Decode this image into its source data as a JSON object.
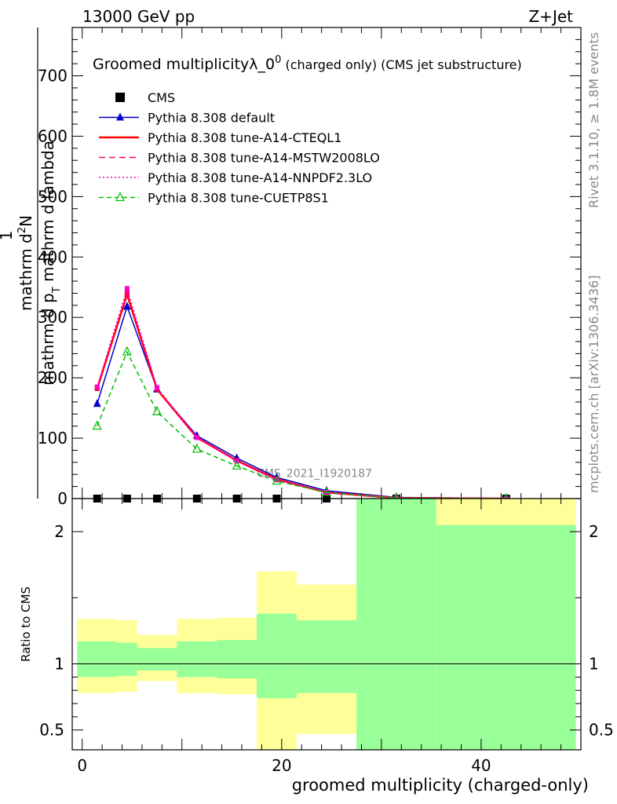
{
  "header": {
    "left": "13000 GeV pp",
    "right": "Z+Jet"
  },
  "side_labels": {
    "rivet": "Rivet 3.1.10, ≥ 1.8M events",
    "mcplots": "mcplots.cern.ch [arXiv:1306.3436]"
  },
  "chart_data": [
    {
      "type": "line",
      "title_main": "Groomed multiplicity",
      "title_lambda": "λ_0",
      "title_sup": "0",
      "title_suffix": " (charged only) (CMS jet substructure)",
      "ylabel": {
        "num_top": "mathrm d",
        "num_top_sup": "2",
        "num_rest": "N",
        "den": "mathrm d p",
        "den_sub": "T",
        "den_rest": " mathrm d lambda",
        "lead_num": "1",
        "lead_den": "mathrm d N / mathrm d p",
        "lead_den_sub": "T"
      },
      "ylim": [
        0,
        780
      ],
      "xlim": [
        -1,
        50
      ],
      "yticks": [
        0,
        100,
        200,
        300,
        400,
        500,
        600,
        700
      ],
      "watermark": "CMS_2021_I1920187",
      "x": [
        1.5,
        4.5,
        7.5,
        11.5,
        15.5,
        19.5,
        24.5,
        31.5,
        42.5
      ],
      "series": [
        {
          "name": "CMS",
          "color": "#000000",
          "marker": "square",
          "values": [
            0,
            0,
            0,
            0,
            0,
            0,
            0,
            0,
            0
          ]
        },
        {
          "name": "Pythia 8.308 default",
          "color": "#0000cc",
          "dash": "",
          "marker": "triangle-filled",
          "values": [
            157,
            318,
            181,
            104,
            67,
            35,
            13,
            2,
            0
          ]
        },
        {
          "name": "Pythia 8.308 tune-A14-CTEQL1",
          "color": "#ff0000",
          "dash": "",
          "width": 2.5,
          "marker": "",
          "values": [
            182,
            338,
            181,
            101,
            63,
            32,
            10,
            1,
            0
          ]
        },
        {
          "name": "Pythia 8.308 tune-A14-MSTW2008LO",
          "color": "#ff0066",
          "dash": "8,5",
          "marker": "",
          "values": [
            183,
            342,
            182,
            101,
            62,
            31,
            10,
            1,
            0
          ]
        },
        {
          "name": "Pythia 8.308 tune-A14-NNPDF2.3LO",
          "color": "#ff00cc",
          "dash": "2,3",
          "marker": "",
          "values": [
            185,
            348,
            184,
            101,
            62,
            31,
            10,
            1,
            0
          ]
        },
        {
          "name": "Pythia 8.308 tune-CUETP8S1",
          "color": "#00bb00",
          "dash": "6,4",
          "marker": "triangle-open",
          "values": [
            120,
            243,
            144,
            82,
            54,
            29,
            10,
            1,
            0
          ]
        }
      ]
    },
    {
      "type": "area",
      "ylabel": "Ratio to CMS",
      "xlabel": "groomed multiplicity (charged-only)",
      "ylim": [
        0.35,
        2.25
      ],
      "xlim": [
        -1,
        50
      ],
      "xticks": [
        0,
        20,
        40
      ],
      "yticks": [
        0.5,
        1,
        2
      ],
      "bands": [
        {
          "x0": -0.5,
          "x1": 3.5,
          "green": [
            0.9,
            1.17
          ],
          "yellow": [
            0.78,
            1.34
          ]
        },
        {
          "x0": 3.5,
          "x1": 5.5,
          "green": [
            0.91,
            1.16
          ],
          "yellow": [
            0.79,
            1.33
          ]
        },
        {
          "x0": 5.5,
          "x1": 9.5,
          "green": [
            0.95,
            1.12
          ],
          "yellow": [
            0.87,
            1.22
          ]
        },
        {
          "x0": 9.5,
          "x1": 13.5,
          "green": [
            0.9,
            1.17
          ],
          "yellow": [
            0.78,
            1.34
          ]
        },
        {
          "x0": 13.5,
          "x1": 17.5,
          "green": [
            0.89,
            1.18
          ],
          "yellow": [
            0.77,
            1.35
          ]
        },
        {
          "x0": 17.5,
          "x1": 21.5,
          "green": [
            0.74,
            1.38
          ],
          "yellow": [
            0.3,
            1.7
          ]
        },
        {
          "x0": 21.5,
          "x1": 27.5,
          "green": [
            0.78,
            1.33
          ],
          "yellow": [
            0.47,
            1.6
          ]
        },
        {
          "x0": 27.5,
          "x1": 35.5,
          "green": [
            0.3,
            3.0
          ],
          "yellow": [
            0.3,
            3.0
          ]
        },
        {
          "x0": 35.5,
          "x1": 49.5,
          "green": [
            0.3,
            2.05
          ],
          "yellow": [
            0.3,
            3.0
          ]
        }
      ]
    }
  ]
}
